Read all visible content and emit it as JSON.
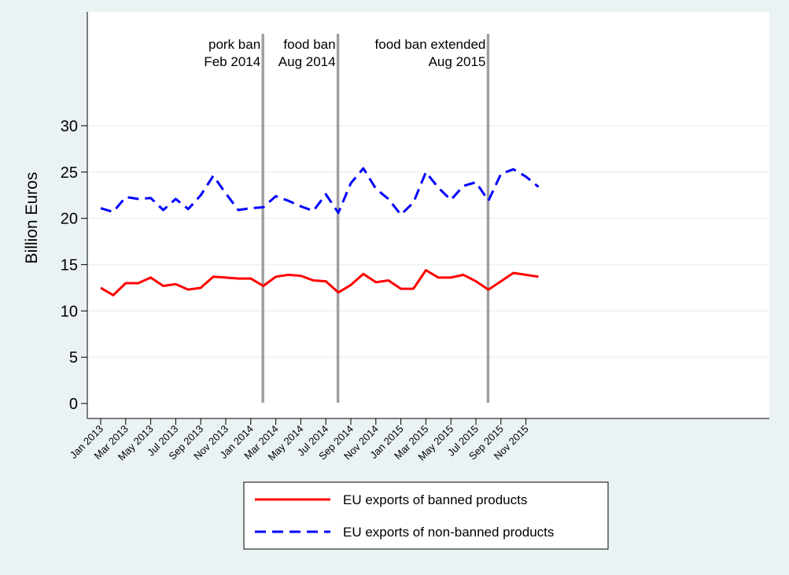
{
  "chart_data": {
    "type": "line",
    "title": "",
    "xlabel": "",
    "ylabel": "Billion Euros",
    "ylim": [
      0,
      35
    ],
    "yticks": [
      0,
      5,
      10,
      15,
      20,
      25,
      30
    ],
    "grid": true,
    "legend_position": "bottom",
    "x": [
      "Jan 2013",
      "Feb 2013",
      "Mar 2013",
      "Apr 2013",
      "May 2013",
      "Jun 2013",
      "Jul 2013",
      "Aug 2013",
      "Sep 2013",
      "Oct 2013",
      "Nov 2013",
      "Dec 2013",
      "Jan 2014",
      "Feb 2014",
      "Mar 2014",
      "Apr 2014",
      "May 2014",
      "Jun 2014",
      "Jul 2014",
      "Aug 2014",
      "Sep 2014",
      "Oct 2014",
      "Nov 2014",
      "Dec 2014",
      "Jan 2015",
      "Feb 2015",
      "Mar 2015",
      "Apr 2015",
      "May 2015",
      "Jun 2015",
      "Jul 2015",
      "Aug 2015",
      "Sep 2015",
      "Oct 2015",
      "Nov 2015",
      "Dec 2015"
    ],
    "xtick_labels": [
      "Jan 2013",
      "Mar 2013",
      "May 2013",
      "Jul 2013",
      "Sep 2013",
      "Nov 2013",
      "Jan 2014",
      "Mar 2014",
      "May 2014",
      "Jul 2014",
      "Sep 2014",
      "Nov 2014",
      "Jan 2015",
      "Mar 2015",
      "May 2015",
      "Jul 2015",
      "Sep 2015",
      "Nov 2015"
    ],
    "series": [
      {
        "name": "EU exports of banned products",
        "color": "#ff0000",
        "style": "solid",
        "values": [
          12.5,
          11.7,
          13.0,
          13.0,
          13.6,
          12.7,
          12.9,
          12.3,
          12.5,
          13.7,
          13.6,
          13.5,
          13.5,
          12.7,
          13.7,
          13.9,
          13.8,
          13.3,
          13.2,
          12.0,
          12.8,
          14.0,
          13.1,
          13.3,
          12.4,
          12.4,
          14.4,
          13.6,
          13.6,
          13.9,
          13.2,
          12.3,
          13.2,
          14.1,
          13.9,
          13.7
        ]
      },
      {
        "name": "EU exports of non-banned products",
        "color": "#0000ff",
        "style": "dashed",
        "values": [
          21.1,
          20.7,
          22.3,
          22.1,
          22.2,
          20.9,
          22.1,
          21.0,
          22.5,
          24.6,
          22.7,
          20.9,
          21.1,
          21.2,
          22.4,
          21.9,
          21.3,
          20.8,
          22.6,
          20.6,
          23.8,
          25.4,
          23.2,
          22.1,
          20.4,
          21.7,
          25.0,
          23.3,
          22.0,
          23.5,
          23.9,
          21.9,
          24.8,
          25.3,
          24.5,
          23.4
        ]
      }
    ],
    "annotations": [
      {
        "x": "Feb 2014",
        "lines": [
          "pork ban",
          "Feb 2014"
        ]
      },
      {
        "x": "Aug 2014",
        "lines": [
          "food ban",
          "Aug 2014"
        ]
      },
      {
        "x": "Aug 2015",
        "lines": [
          "food ban extended",
          "Aug 2015"
        ]
      }
    ],
    "colors": {
      "background": "#eaf2f3",
      "plot_background": "#ffffff",
      "grid": "#eaf2f3",
      "vline": "#a0a0a0"
    }
  }
}
